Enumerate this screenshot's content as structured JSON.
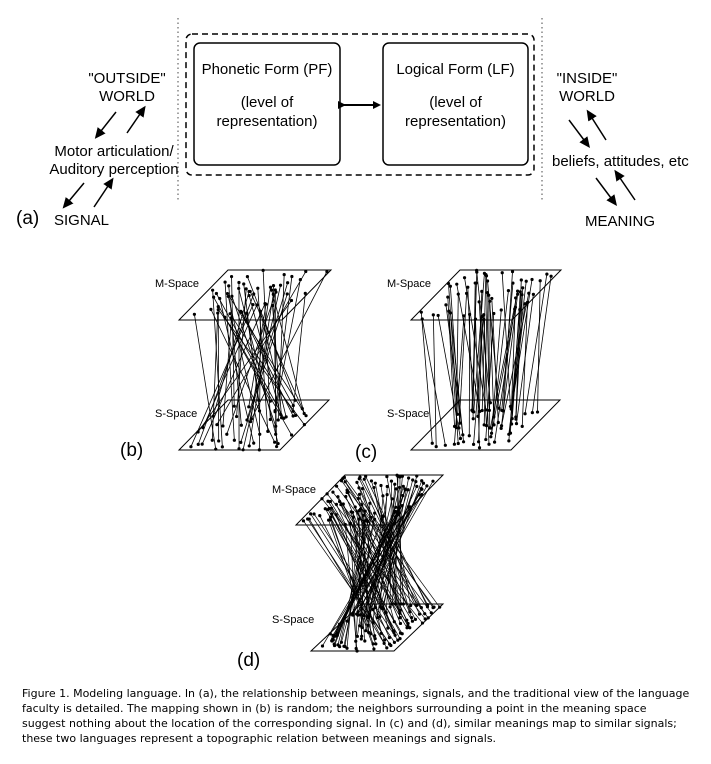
{
  "panel_a": {
    "letter": "(a)",
    "outside_world": [
      "\"OUTSIDE\"",
      "WORLD"
    ],
    "inside_world": [
      "\"INSIDE\"",
      "WORLD"
    ],
    "motor": [
      "Motor articulation/",
      "Auditory perception"
    ],
    "signal": "SIGNAL",
    "beliefs": "beliefs, attitudes, etc",
    "meaning": "MEANING",
    "pf_box": [
      "Phonetic Form (PF)",
      "(level of",
      "representation)"
    ],
    "lf_box": [
      "Logical Form (LF)",
      "(level of",
      "representation)"
    ]
  },
  "panel_b": {
    "letter": "(b)",
    "m_label": "M-Space",
    "s_label": "S-Space"
  },
  "panel_c": {
    "letter": "(c)",
    "m_label": "M-Space",
    "s_label": "S-Space"
  },
  "panel_d": {
    "letter": "(d)",
    "m_label": "M-Space",
    "s_label": "S-Space"
  },
  "caption": "Figure 1. Modeling language. In (a), the relationship between meanings, signals, and the traditional view of the language faculty is detailed. The mapping shown in (b) is random; the neighbors surrounding a point in the meaning space suggest nothing about the location of the corresponding signal. In (c) and (d), similar meanings map to similar signals; these two languages represent a topographic relation between meanings and signals."
}
